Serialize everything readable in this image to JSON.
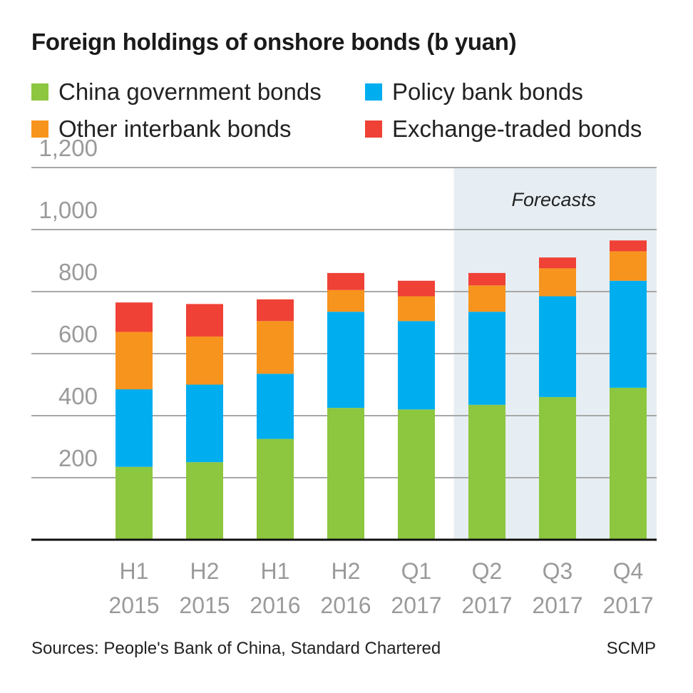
{
  "title": "Foreign holdings of onshore bonds (b yuan)",
  "legend": [
    {
      "label": "China government bonds",
      "color": "#8dc63f"
    },
    {
      "label": "Policy bank bonds",
      "color": "#00aeef"
    },
    {
      "label": "Other interbank bonds",
      "color": "#f7941d"
    },
    {
      "label": "Exchange-traded bonds",
      "color": "#ef4136"
    }
  ],
  "footer": {
    "sources": "Sources: People's Bank of China, Standard Chartered",
    "credit": "SCMP"
  },
  "chart_data": {
    "type": "bar",
    "stacked": true,
    "categories": [
      [
        "H1",
        "2015"
      ],
      [
        "H2",
        "2015"
      ],
      [
        "H1",
        "2016"
      ],
      [
        "H2",
        "2016"
      ],
      [
        "Q1",
        "2017"
      ],
      [
        "Q2",
        "2017"
      ],
      [
        "Q3",
        "2017"
      ],
      [
        "Q4",
        "2017"
      ]
    ],
    "series": [
      {
        "name": "China government bonds",
        "color": "#8dc63f",
        "values": [
          235,
          250,
          325,
          425,
          420,
          435,
          460,
          490
        ]
      },
      {
        "name": "Policy bank bonds",
        "color": "#00aeef",
        "values": [
          250,
          250,
          210,
          310,
          285,
          300,
          325,
          345
        ]
      },
      {
        "name": "Other interbank bonds",
        "color": "#f7941d",
        "values": [
          185,
          155,
          170,
          70,
          80,
          85,
          90,
          95
        ]
      },
      {
        "name": "Exchange-traded bonds",
        "color": "#ef4136",
        "values": [
          95,
          105,
          70,
          55,
          50,
          40,
          35,
          35
        ]
      }
    ],
    "ylim": [
      0,
      1200
    ],
    "yticks": [
      {
        "value": 200,
        "label": "200"
      },
      {
        "value": 400,
        "label": "400"
      },
      {
        "value": 600,
        "label": "600"
      },
      {
        "value": 800,
        "label": "800"
      },
      {
        "value": 1000,
        "label": "1,000"
      },
      {
        "value": 1200,
        "label": "1,200"
      }
    ],
    "grid": true,
    "forecast": {
      "label": "Forecasts",
      "start_index": 5
    }
  }
}
